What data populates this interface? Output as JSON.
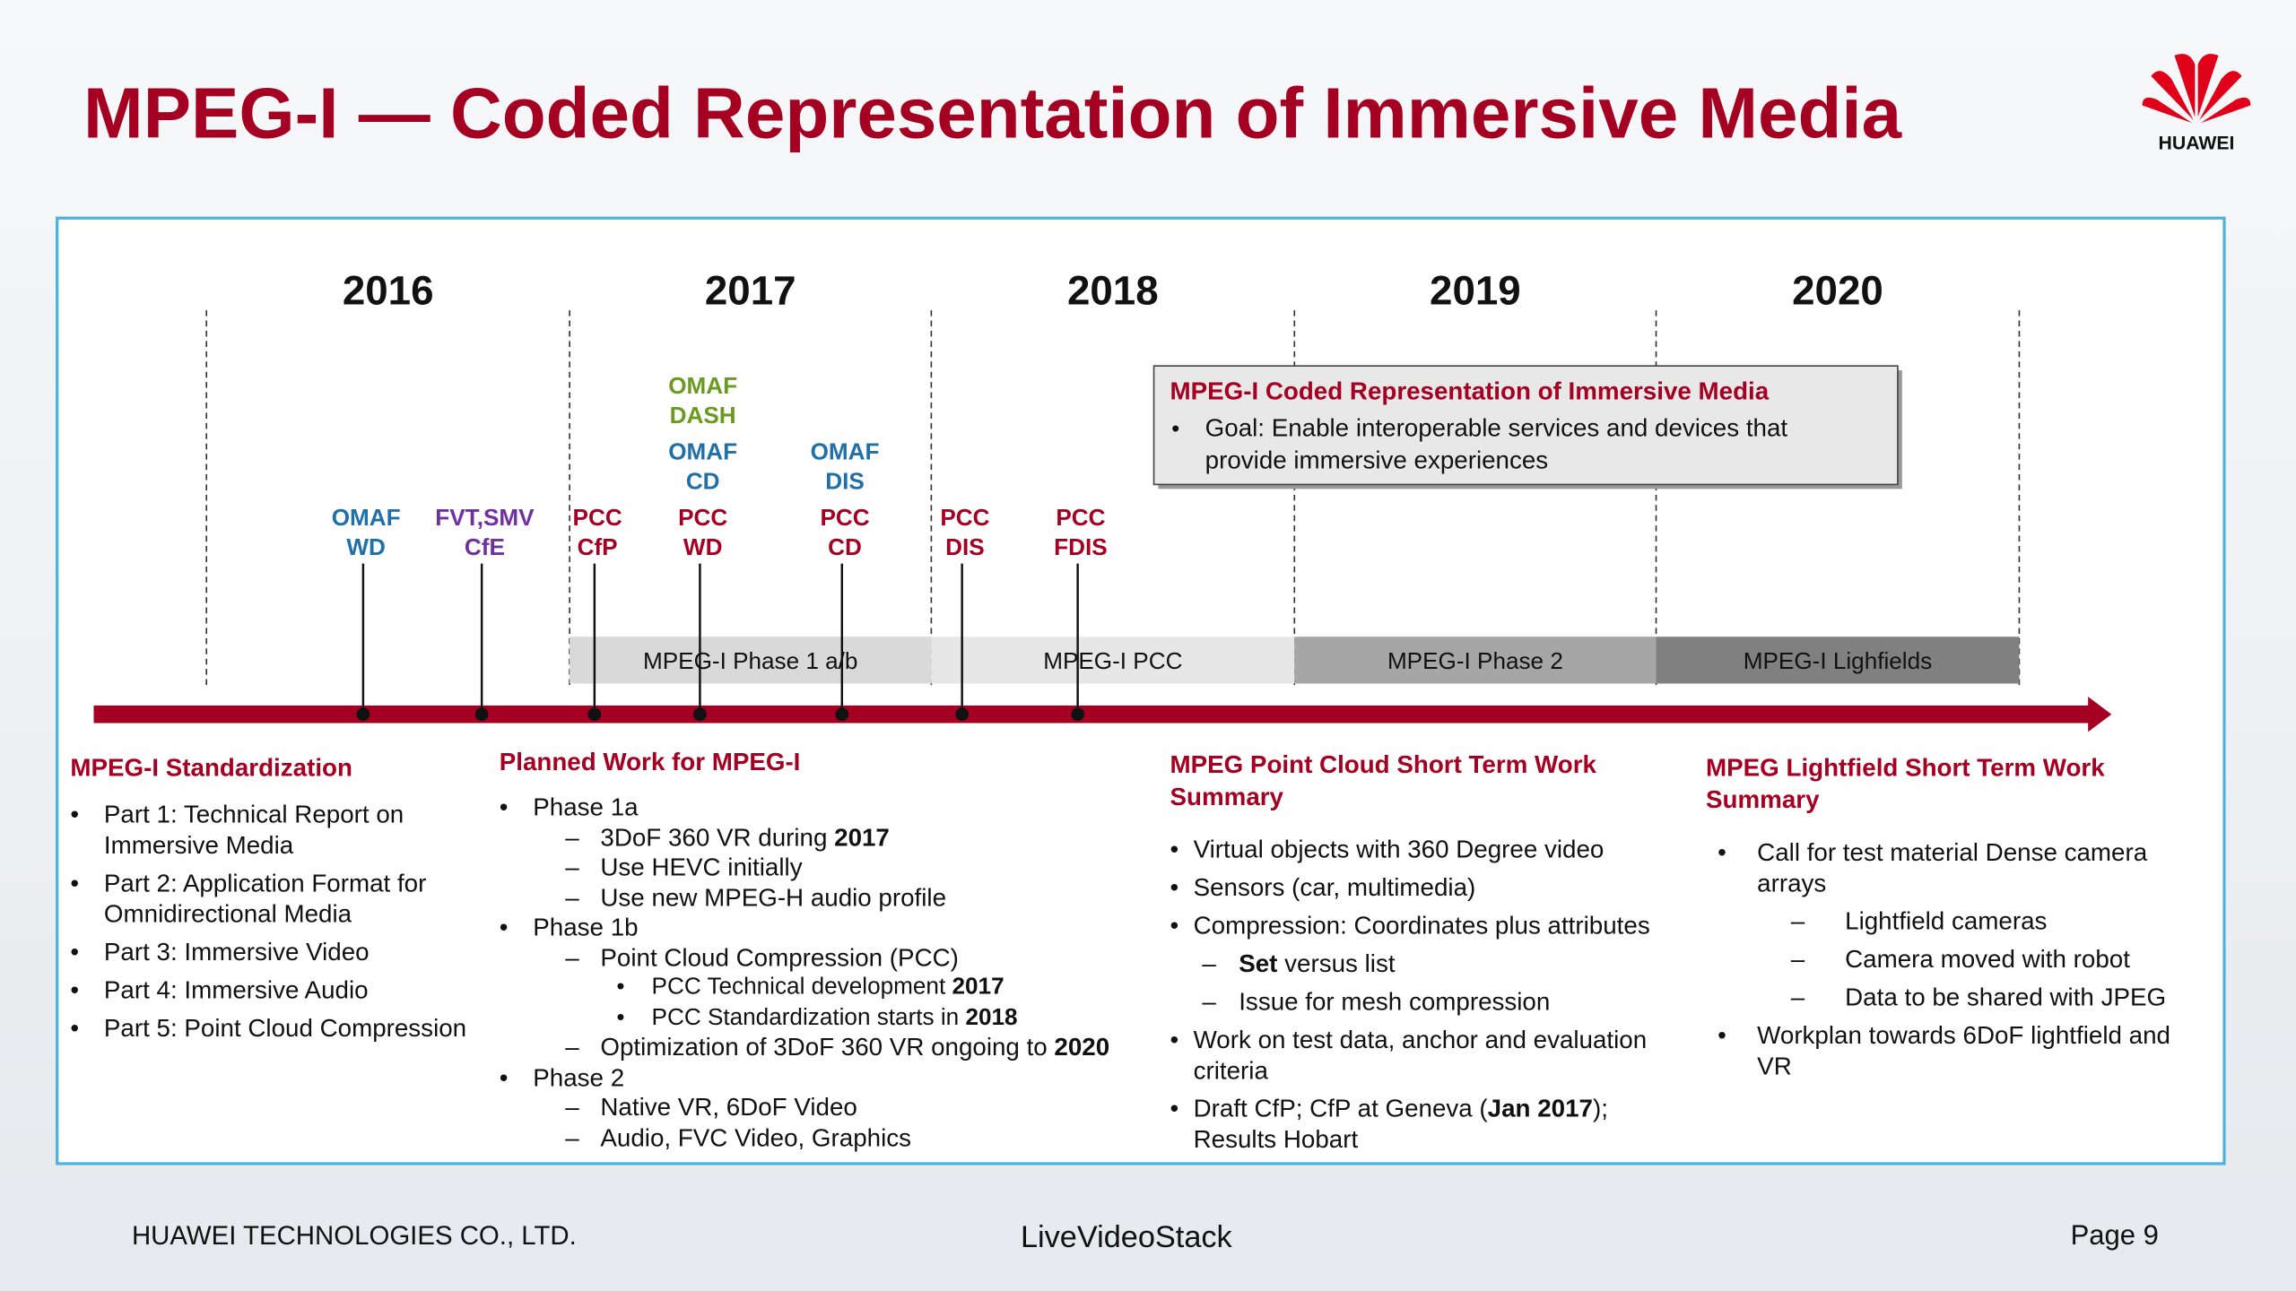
{
  "header": {
    "title": "MPEG-I — Coded Representation of Immersive Media",
    "logo": "HUAWEI"
  },
  "timeline": {
    "years": [
      "2016",
      "2017",
      "2018",
      "2019",
      "2020"
    ],
    "milestones": [
      {
        "labels": [
          {
            "lines": [
              "OMAF",
              "WD"
            ],
            "color": "#1f6fa8"
          }
        ]
      },
      {
        "labels": [
          {
            "lines": [
              "FVT,SMV",
              "CfE"
            ],
            "color": "#7030a0"
          }
        ]
      },
      {
        "labels": [
          {
            "lines": [
              "PCC",
              "CfP"
            ],
            "color": "#a50021"
          }
        ]
      },
      {
        "labels": [
          {
            "lines": [
              "OMAF",
              "DASH"
            ],
            "color": "#6a9a1f"
          },
          {
            "lines": [
              "OMAF",
              "CD"
            ],
            "color": "#1f6fa8"
          },
          {
            "lines": [
              "PCC",
              "WD"
            ],
            "color": "#a50021"
          }
        ]
      },
      {
        "labels": [
          {
            "lines": [
              "OMAF",
              "DIS"
            ],
            "color": "#1f6fa8"
          },
          {
            "lines": [
              "PCC",
              "CD"
            ],
            "color": "#a50021"
          }
        ]
      },
      {
        "labels": [
          {
            "lines": [
              "PCC",
              "DIS"
            ],
            "color": "#a50021"
          }
        ]
      },
      {
        "labels": [
          {
            "lines": [
              "PCC",
              "FDIS"
            ],
            "color": "#a50021"
          }
        ]
      }
    ],
    "phases": [
      {
        "label": "MPEG-I Phase 1 a/b",
        "color": "#d9d9d9"
      },
      {
        "label": "MPEG-I PCC",
        "color": "#e7e7e7"
      },
      {
        "label": "MPEG-I Phase 2",
        "color": "#a6a6a6"
      },
      {
        "label": "MPEG-I Lighfields",
        "color": "#808080"
      }
    ],
    "callout": {
      "title": "MPEG-I  Coded Representation of Immersive Media",
      "lines": [
        "Goal: Enable interoperable services and devices that",
        "provide immersive experiences"
      ]
    }
  },
  "sections": [
    {
      "heading": "MPEG-I Standardization",
      "items": [
        {
          "level": 1,
          "runs": [
            {
              "text": "Part 1: Technical Report on Immersive Media"
            }
          ]
        },
        {
          "level": 1,
          "runs": [
            {
              "text": "Part 2: Application Format for Omnidirectional Media"
            }
          ]
        },
        {
          "level": 1,
          "runs": [
            {
              "text": "Part 3: Immersive Video"
            }
          ]
        },
        {
          "level": 1,
          "runs": [
            {
              "text": "Part 4: Immersive Audio"
            }
          ]
        },
        {
          "level": 1,
          "runs": [
            {
              "text": "Part 5: Point Cloud Compression"
            }
          ]
        }
      ]
    },
    {
      "heading": "Planned Work for MPEG-I",
      "items": [
        {
          "level": 1,
          "runs": [
            {
              "text": "Phase 1a"
            }
          ]
        },
        {
          "level": 2,
          "runs": [
            {
              "text": "3DoF 360 VR during "
            },
            {
              "text": "2017",
              "bold": true
            }
          ]
        },
        {
          "level": 2,
          "runs": [
            {
              "text": "Use HEVC initially"
            }
          ]
        },
        {
          "level": 2,
          "runs": [
            {
              "text": "Use new MPEG-H audio profile"
            }
          ]
        },
        {
          "level": 1,
          "runs": [
            {
              "text": "Phase 1b"
            }
          ]
        },
        {
          "level": 2,
          "runs": [
            {
              "text": "Point Cloud Compression (PCC)"
            }
          ]
        },
        {
          "level": 3,
          "runs": [
            {
              "text": "PCC Technical development "
            },
            {
              "text": "2017",
              "bold": true
            }
          ]
        },
        {
          "level": 3,
          "runs": [
            {
              "text": "PCC Standardization starts in "
            },
            {
              "text": "2018",
              "bold": true
            }
          ]
        },
        {
          "level": 2,
          "runs": [
            {
              "text": "Optimization of 3DoF 360 VR ongoing to "
            },
            {
              "text": "2020",
              "bold": true
            }
          ]
        },
        {
          "level": 1,
          "runs": [
            {
              "text": "Phase 2"
            }
          ]
        },
        {
          "level": 2,
          "runs": [
            {
              "text": "Native VR, 6DoF Video"
            }
          ]
        },
        {
          "level": 2,
          "runs": [
            {
              "text": "Audio, FVC Video, Graphics"
            }
          ]
        }
      ]
    },
    {
      "heading": "MPEG Point Cloud Short Term Work Summary",
      "items": [
        {
          "level": 1,
          "runs": [
            {
              "text": "Virtual objects with 360 Degree video"
            }
          ]
        },
        {
          "level": 1,
          "runs": [
            {
              "text": "Sensors (car, multimedia)"
            }
          ]
        },
        {
          "level": 1,
          "runs": [
            {
              "text": "Compression: Coordinates plus attributes"
            }
          ]
        },
        {
          "level": 2,
          "runs": [
            {
              "text": "Set",
              "bold": true
            },
            {
              "text": " versus list"
            }
          ]
        },
        {
          "level": 2,
          "runs": [
            {
              "text": "Issue for mesh compression"
            }
          ]
        },
        {
          "level": 1,
          "runs": [
            {
              "text": "Work on test data, anchor and evaluation criteria"
            }
          ]
        },
        {
          "level": 1,
          "runs": [
            {
              "text": "Draft CfP; CfP at Geneva ("
            },
            {
              "text": "Jan 2017",
              "bold": true
            },
            {
              "text": "); Results Hobart"
            }
          ]
        }
      ]
    },
    {
      "heading": "MPEG Lightfield Short Term Work Summary",
      "items": [
        {
          "level": 1,
          "runs": [
            {
              "text": "Call for test material Dense camera arrays"
            }
          ]
        },
        {
          "level": 2,
          "runs": [
            {
              "text": "Lightfield cameras"
            }
          ]
        },
        {
          "level": 2,
          "runs": [
            {
              "text": "Camera moved with robot"
            }
          ]
        },
        {
          "level": 2,
          "runs": [
            {
              "text": "Data to be shared with JPEG"
            }
          ]
        },
        {
          "level": 1,
          "runs": [
            {
              "text": "Workplan towards 6DoF lightfield and VR"
            }
          ]
        }
      ]
    }
  ],
  "footer": {
    "company": "HUAWEI TECHNOLOGIES CO., LTD.",
    "brand": "LiveVideoStack",
    "page": "Page 9"
  }
}
